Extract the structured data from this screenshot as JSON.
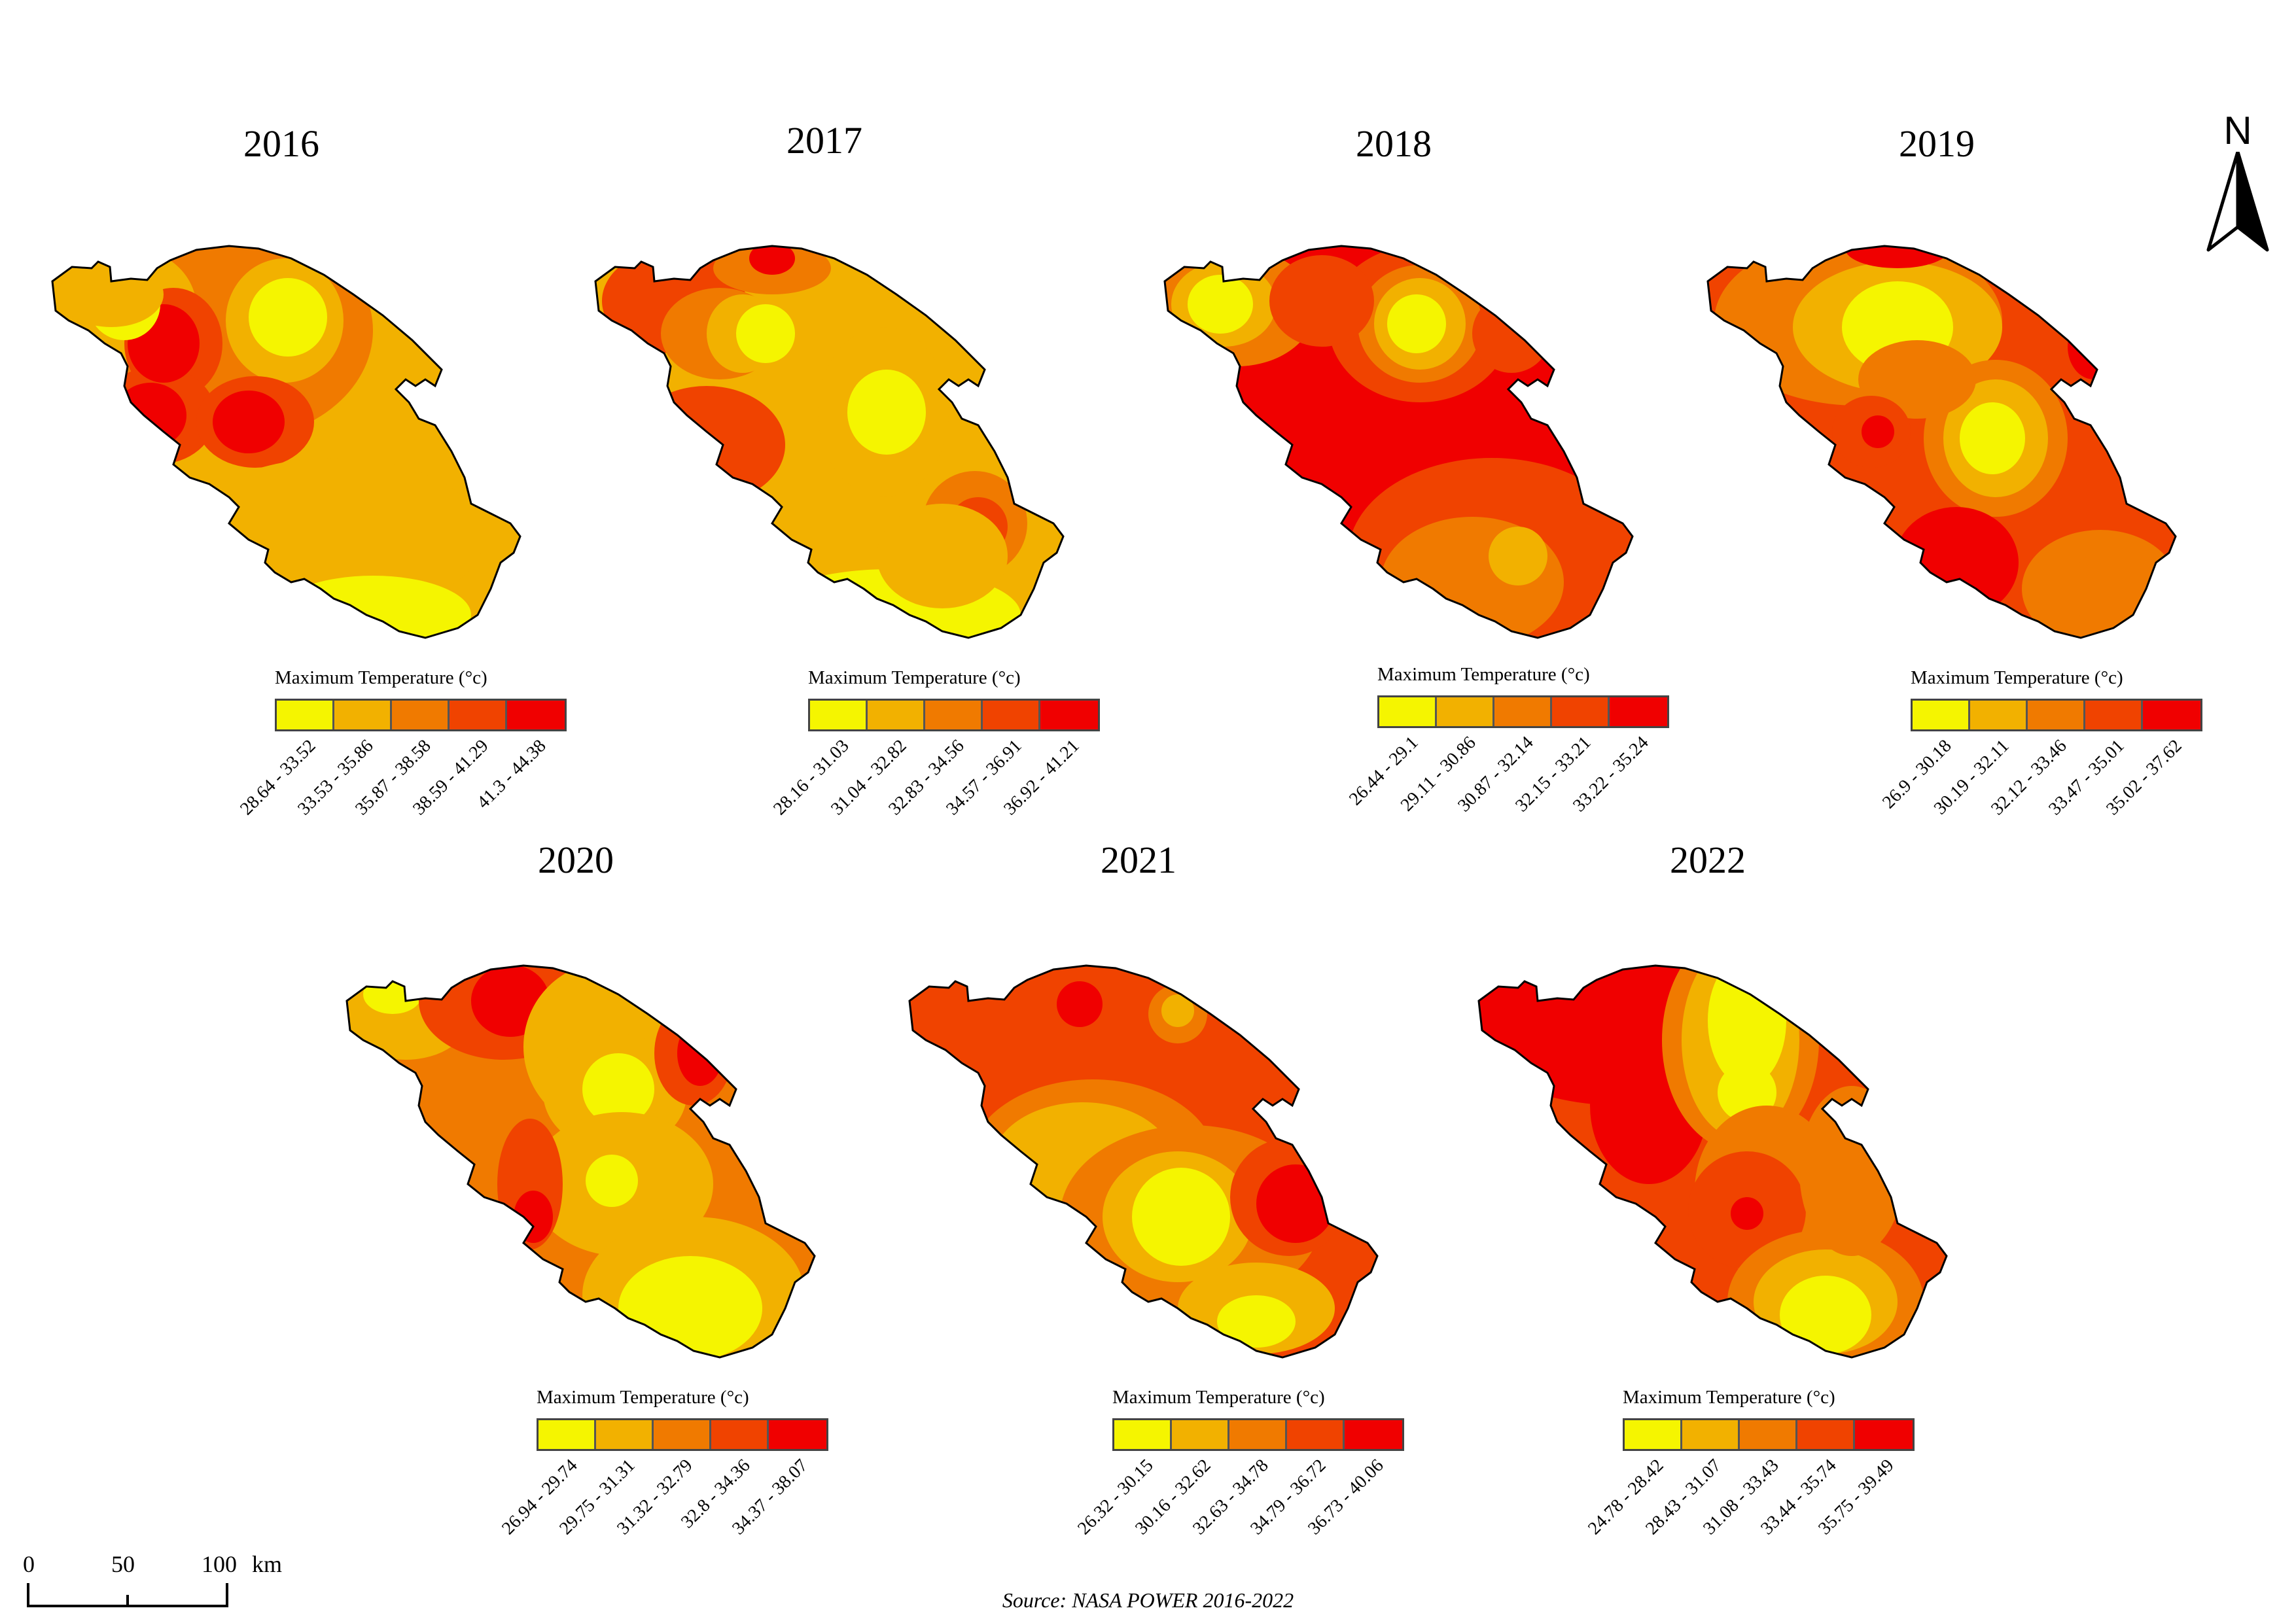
{
  "source_text": "Source: NASA POWER 2016-2022",
  "north_label": "N",
  "scale": {
    "labels": [
      "0",
      "50",
      "100"
    ],
    "unit": "km"
  },
  "palette": [
    "#f5f500",
    "#f2b100",
    "#f07a00",
    "#f04300",
    "#f00000"
  ],
  "legend_title": "Maximum Temperature (°c)",
  "panels": [
    {
      "year": "2016",
      "classes": [
        "28.64 - 33.52",
        "33.53 - 35.86",
        "35.87 - 38.58",
        "38.59 - 41.29",
        "41.3 - 44.38"
      ]
    },
    {
      "year": "2017",
      "classes": [
        "28.16 - 31.03",
        "31.04 - 32.82",
        "32.83 - 34.56",
        "34.57 - 36.91",
        "36.92 - 41.21"
      ]
    },
    {
      "year": "2018",
      "classes": [
        "26.44 - 29.1",
        "29.11 - 30.86",
        "30.87 - 32.14",
        "32.15 - 33.21",
        "33.22 - 35.24"
      ]
    },
    {
      "year": "2019",
      "classes": [
        "26.9 - 30.18",
        "30.19 - 32.11",
        "32.12 - 33.46",
        "33.47 - 35.01",
        "35.02 - 37.62"
      ]
    },
    {
      "year": "2020",
      "classes": [
        "26.94 - 29.74",
        "29.75 - 31.31",
        "31.32 - 32.79",
        "32.8 - 34.36",
        "34.37 - 38.07"
      ]
    },
    {
      "year": "2021",
      "classes": [
        "26.32 - 30.15",
        "30.16 - 32.62",
        "32.63 - 34.78",
        "34.79 - 36.72",
        "36.73 - 40.06"
      ]
    },
    {
      "year": "2022",
      "classes": [
        "24.78 - 28.42",
        "28.43 - 31.07",
        "31.08 - 33.43",
        "33.44 - 35.74",
        "35.75 - 39.49"
      ]
    }
  ]
}
